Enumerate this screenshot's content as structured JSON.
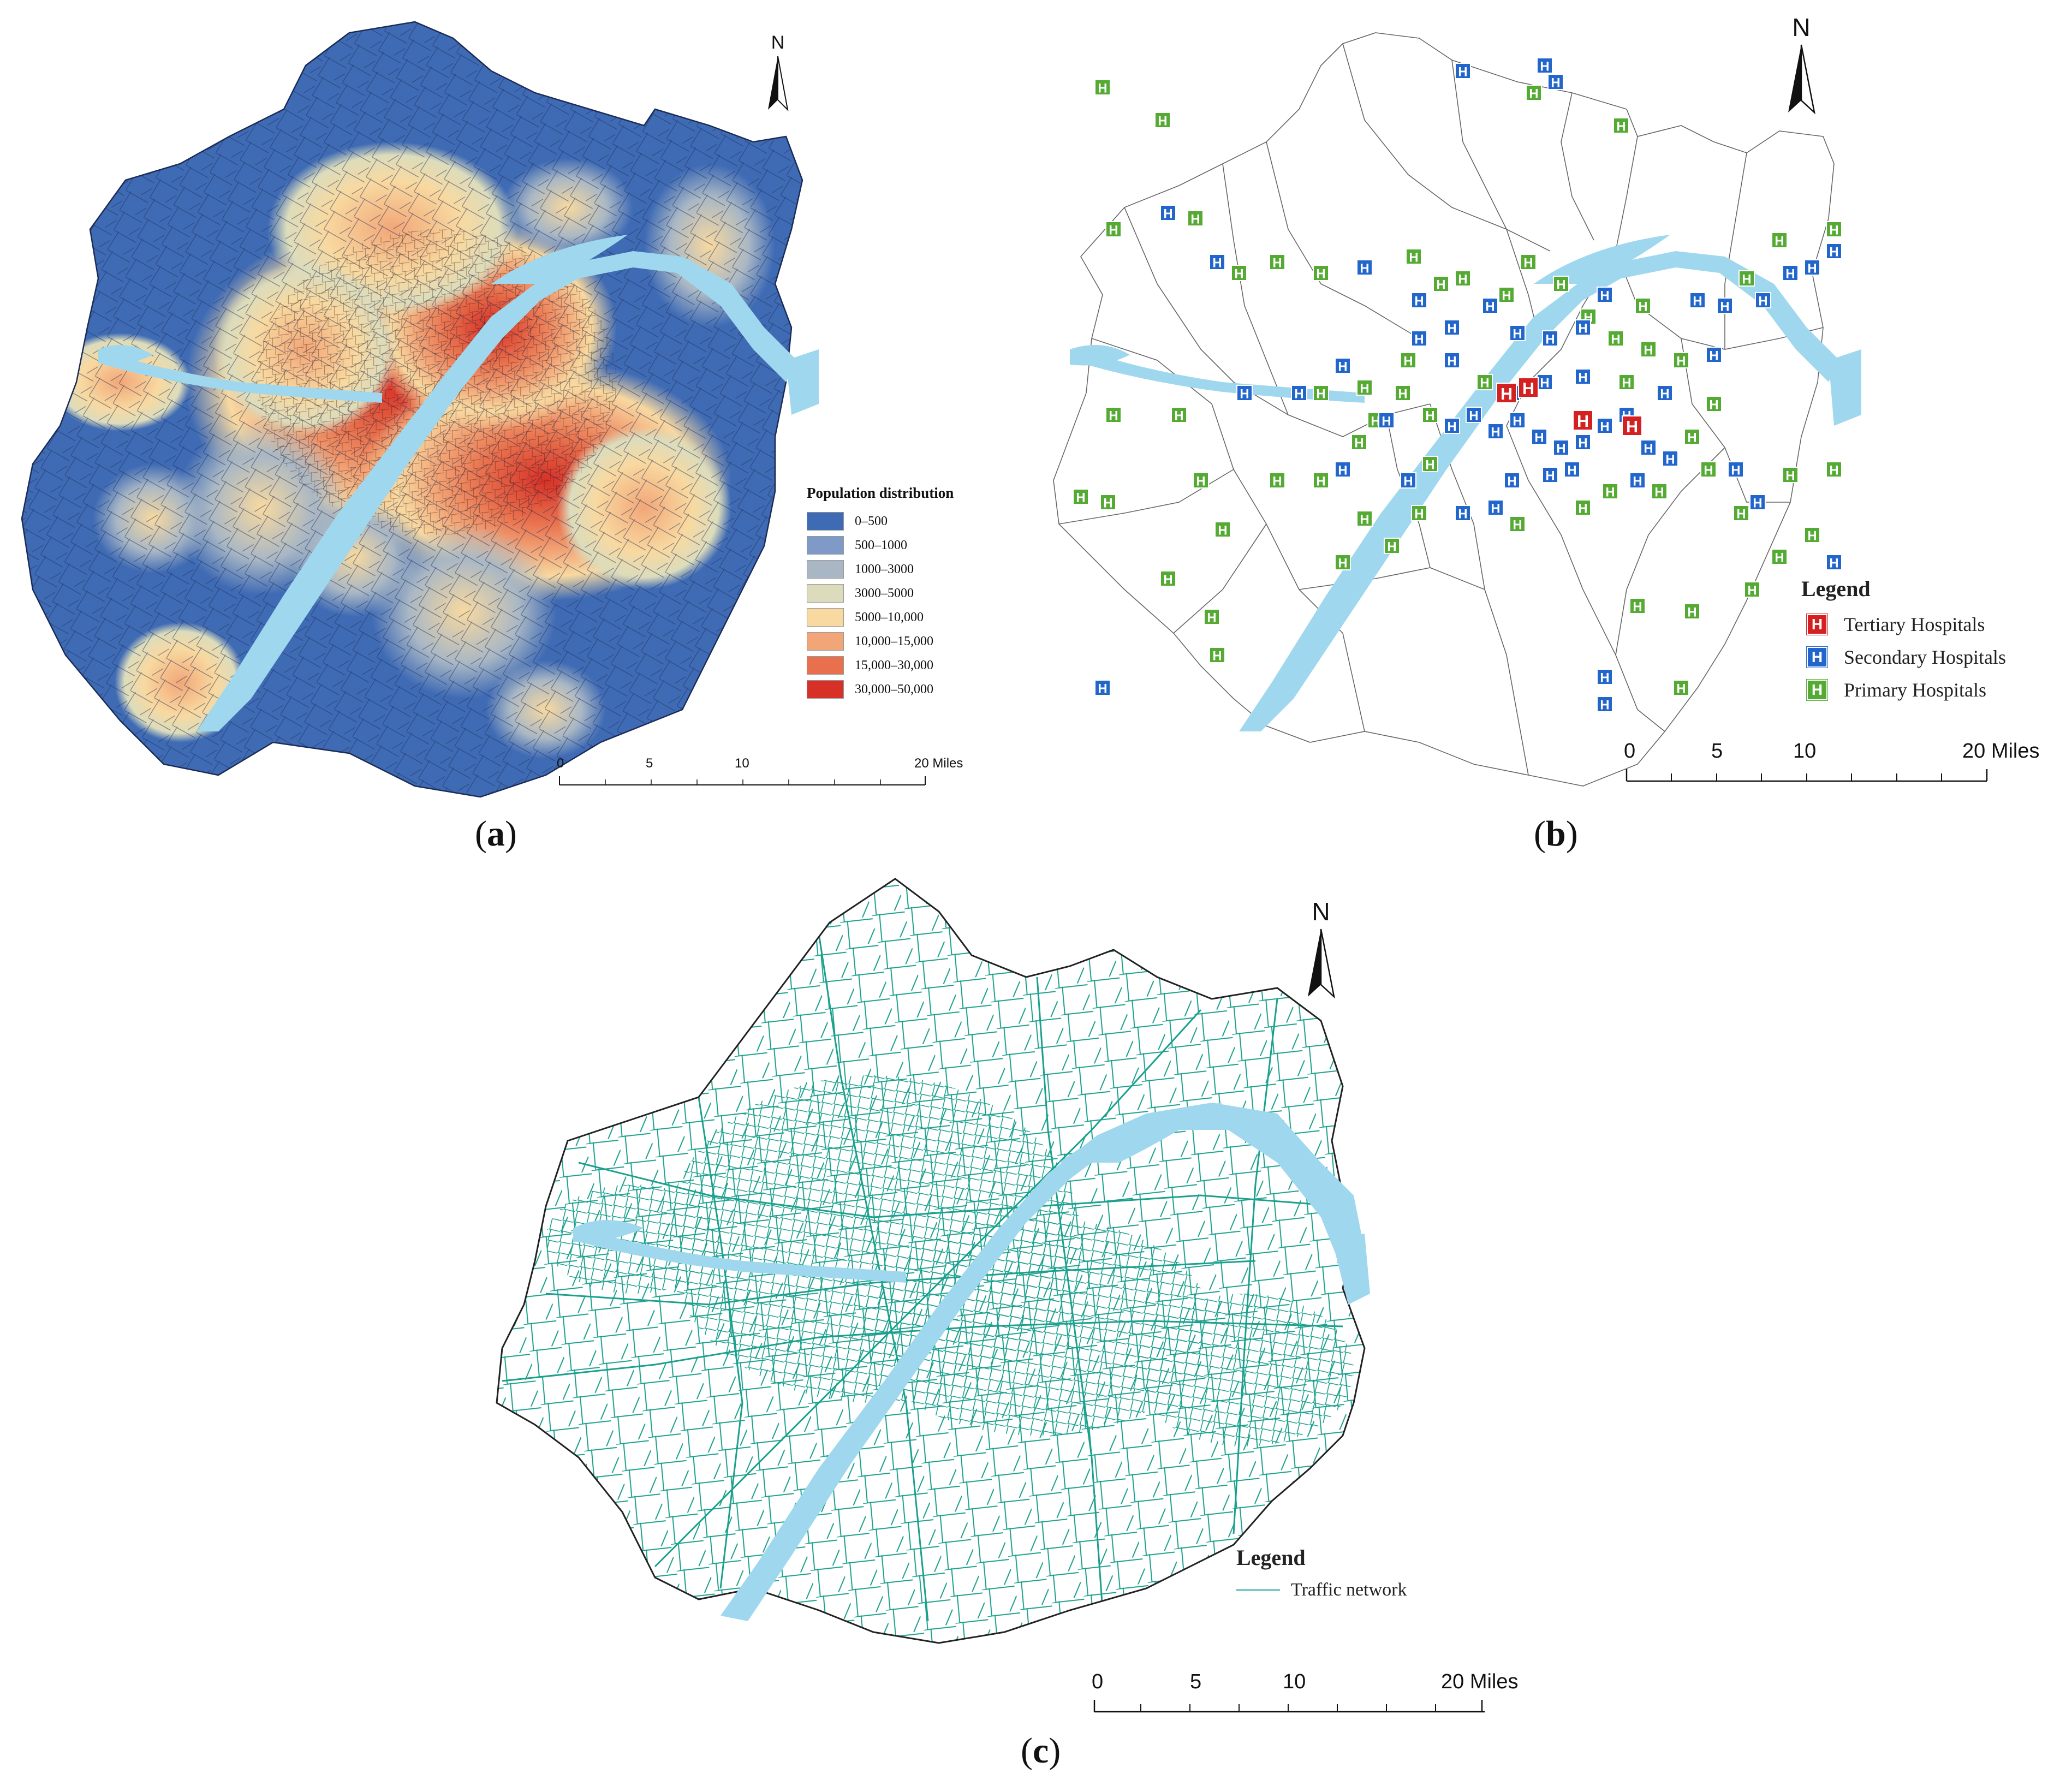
{
  "panels": {
    "a": {
      "caption": "a",
      "legend_title": "Population distribution",
      "legend_items": [
        {
          "label": "0–500",
          "color": "#3f6bb5"
        },
        {
          "label": "500–1000",
          "color": "#7f9ac6"
        },
        {
          "label": "1000–3000",
          "color": "#a9b7c4"
        },
        {
          "label": "3000–5000",
          "color": "#dcdcbc"
        },
        {
          "label": "5000–10,000",
          "color": "#f8d9a0"
        },
        {
          "label": "10,000–15,000",
          "color": "#f2a678"
        },
        {
          "label": "15,000–30,000",
          "color": "#e8704d"
        },
        {
          "label": "30,000–50,000",
          "color": "#d73027"
        }
      ],
      "north": "N",
      "scale": {
        "ticks": [
          "0",
          "5",
          "10"
        ],
        "end": "20 Miles"
      }
    },
    "b": {
      "caption": "b",
      "legend_title": "Legend",
      "legend_items": [
        {
          "label": "Tertiary Hospitals",
          "color": "#d42020",
          "icon": "hospital-icon"
        },
        {
          "label": "Secondary Hospitals",
          "color": "#2266cc",
          "icon": "hospital-icon"
        },
        {
          "label": "Primary Hospitals",
          "color": "#55aa33",
          "icon": "hospital-icon"
        }
      ],
      "north": "N",
      "scale": {
        "ticks": [
          "0",
          "5",
          "10"
        ],
        "end": "20 Miles"
      }
    },
    "c": {
      "caption": "c",
      "legend_title": "Legend",
      "legend_items": [
        {
          "label": "Traffic network",
          "color": "#7fc8c8"
        }
      ],
      "north": "N",
      "scale": {
        "ticks": [
          "0",
          "5",
          "10"
        ],
        "end": "20 Miles"
      }
    }
  },
  "colors": {
    "water": "#9fd8ee",
    "base_blue": "#3f6bb5",
    "road": "#1aa08c",
    "boundary": "#222222"
  }
}
